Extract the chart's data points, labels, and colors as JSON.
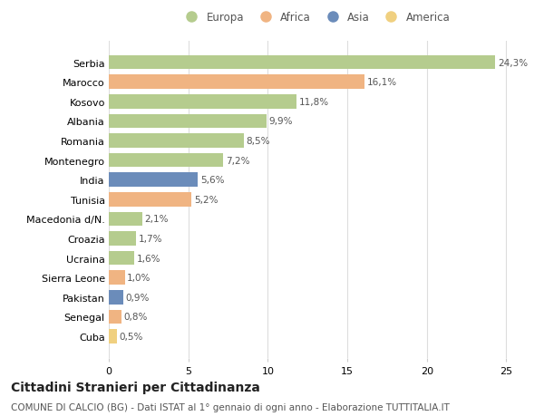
{
  "categories": [
    "Serbia",
    "Marocco",
    "Kosovo",
    "Albania",
    "Romania",
    "Montenegro",
    "India",
    "Tunisia",
    "Macedonia d/N.",
    "Croazia",
    "Ucraina",
    "Sierra Leone",
    "Pakistan",
    "Senegal",
    "Cuba"
  ],
  "values": [
    24.3,
    16.1,
    11.8,
    9.9,
    8.5,
    7.2,
    5.6,
    5.2,
    2.1,
    1.7,
    1.6,
    1.0,
    0.9,
    0.8,
    0.5
  ],
  "labels": [
    "24,3%",
    "16,1%",
    "11,8%",
    "9,9%",
    "8,5%",
    "7,2%",
    "5,6%",
    "5,2%",
    "2,1%",
    "1,7%",
    "1,6%",
    "1,0%",
    "0,9%",
    "0,8%",
    "0,5%"
  ],
  "continents": [
    "Europa",
    "Africa",
    "Europa",
    "Europa",
    "Europa",
    "Europa",
    "Asia",
    "Africa",
    "Europa",
    "Europa",
    "Europa",
    "Africa",
    "Asia",
    "Africa",
    "America"
  ],
  "continent_colors": {
    "Europa": "#b5cc8e",
    "Africa": "#f0b482",
    "Asia": "#6b8cba",
    "America": "#f0d080"
  },
  "legend_order": [
    "Europa",
    "Africa",
    "Asia",
    "America"
  ],
  "title": "Cittadini Stranieri per Cittadinanza",
  "subtitle": "COMUNE DI CALCIO (BG) - Dati ISTAT al 1° gennaio di ogni anno - Elaborazione TUTTITALIA.IT",
  "xlim": [
    0,
    26
  ],
  "xticks": [
    0,
    5,
    10,
    15,
    20,
    25
  ],
  "background_color": "#ffffff",
  "grid_color": "#dddddd",
  "bar_height": 0.72,
  "title_fontsize": 10,
  "subtitle_fontsize": 7.5,
  "label_fontsize": 7.5,
  "tick_fontsize": 8,
  "legend_fontsize": 8.5
}
